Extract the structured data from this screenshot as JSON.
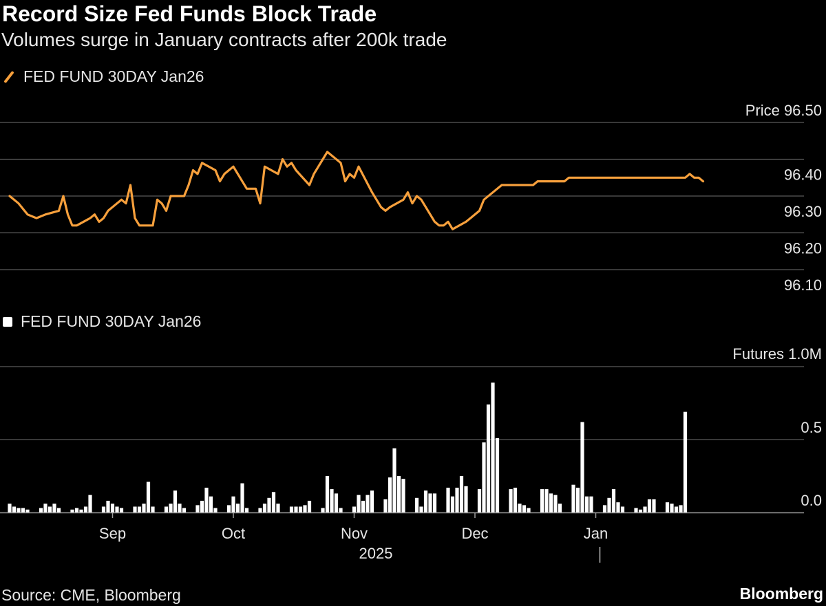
{
  "title": "Record Size Fed Funds Block Trade",
  "subtitle": "Volumes surge in January contracts after 200k trade",
  "source": "Source: CME, Bloomberg",
  "brand": "Bloomberg",
  "chart_data": [
    {
      "type": "line",
      "series_name": "FED FUND 30DAY Jan26",
      "color": "#f7a03c",
      "ylabel": "Price",
      "ylim": [
        96.06,
        96.5
      ],
      "yticks": [
        {
          "value": 96.5,
          "label": "96.50"
        },
        {
          "value": 96.4,
          "label": "96.40"
        },
        {
          "value": 96.3,
          "label": "96.30"
        },
        {
          "value": 96.2,
          "label": "96.20"
        },
        {
          "value": 96.1,
          "label": "96.10"
        }
      ],
      "day_offset": [
        0,
        2,
        4,
        6,
        8,
        11,
        12,
        13,
        14,
        15,
        18,
        19,
        20,
        21,
        22,
        25,
        26,
        27,
        28,
        29,
        32,
        33,
        34,
        35,
        36,
        39,
        40,
        41,
        42,
        43,
        46,
        47,
        48,
        49,
        50,
        53,
        54,
        55,
        56,
        57,
        60,
        61,
        62,
        63,
        64,
        67,
        68,
        69,
        70,
        71,
        74,
        75,
        76,
        77,
        78,
        81,
        82,
        83,
        84,
        85,
        88,
        89,
        90,
        91,
        92,
        95,
        96,
        97,
        98,
        99,
        102,
        103,
        104,
        105,
        106,
        109,
        110,
        111,
        112,
        113,
        116,
        117,
        118,
        119,
        120,
        123,
        124,
        125,
        126,
        127,
        130,
        131,
        132,
        133,
        134,
        137,
        138,
        139,
        140,
        141,
        144,
        145,
        146,
        147,
        148,
        151,
        152,
        153,
        154,
        155
      ],
      "price": [
        96.3,
        96.28,
        96.25,
        96.24,
        96.25,
        96.26,
        96.3,
        96.25,
        96.22,
        96.22,
        96.24,
        96.25,
        96.23,
        96.24,
        96.26,
        96.29,
        96.28,
        96.33,
        96.24,
        96.22,
        96.22,
        96.29,
        96.28,
        96.26,
        96.3,
        96.3,
        96.33,
        96.37,
        96.36,
        96.39,
        96.37,
        96.34,
        96.36,
        96.37,
        96.38,
        96.32,
        96.32,
        96.32,
        96.28,
        96.38,
        96.36,
        96.4,
        96.38,
        96.39,
        96.37,
        96.33,
        96.36,
        96.38,
        96.4,
        96.42,
        96.39,
        96.34,
        96.36,
        96.35,
        96.38,
        96.31,
        96.29,
        96.27,
        96.26,
        96.27,
        96.29,
        96.31,
        96.28,
        96.3,
        96.29,
        96.23,
        96.22,
        96.22,
        96.23,
        96.21,
        96.23,
        96.24,
        96.25,
        96.26,
        96.29,
        96.32,
        96.33,
        96.33,
        96.33,
        96.33,
        96.33,
        96.33,
        96.34,
        96.34,
        96.34,
        96.34,
        96.34,
        96.35,
        96.35,
        96.35,
        96.35,
        96.35,
        96.35,
        96.35,
        96.35,
        96.35,
        96.35,
        96.35,
        96.35,
        96.35,
        96.35,
        96.35,
        96.35,
        96.35,
        96.35,
        96.35,
        96.36,
        96.35,
        96.35,
        96.34
      ]
    },
    {
      "type": "bar",
      "series_name": "FED FUND 30DAY Jan26",
      "color": "#ffffff",
      "ylabel": "Futures",
      "ylim": [
        0,
        1.0
      ],
      "yticks": [
        {
          "value": 1.0,
          "label": "1.0M"
        },
        {
          "value": 0.5,
          "label": "0.5"
        },
        {
          "value": 0.0,
          "label": "0.0"
        }
      ],
      "day_offset": [
        0,
        1,
        2,
        3,
        4,
        7,
        8,
        9,
        10,
        11,
        14,
        15,
        16,
        17,
        18,
        21,
        22,
        23,
        24,
        25,
        28,
        29,
        30,
        31,
        32,
        35,
        36,
        37,
        38,
        39,
        42,
        43,
        44,
        45,
        46,
        49,
        50,
        51,
        52,
        53,
        56,
        57,
        58,
        59,
        60,
        63,
        64,
        65,
        66,
        67,
        70,
        71,
        72,
        73,
        74,
        77,
        78,
        79,
        80,
        81,
        84,
        85,
        86,
        87,
        88,
        91,
        92,
        93,
        94,
        95,
        98,
        99,
        100,
        101,
        102,
        105,
        106,
        107,
        108,
        109,
        112,
        113,
        114,
        115,
        116,
        119,
        120,
        121,
        122,
        123,
        126,
        127,
        128,
        129,
        130,
        133,
        134,
        135,
        136,
        137,
        140,
        141,
        142,
        143,
        144,
        147,
        148,
        149,
        150,
        151
      ],
      "volume_millions": [
        0.06,
        0.04,
        0.03,
        0.03,
        0.02,
        0.03,
        0.06,
        0.04,
        0.06,
        0.03,
        0.02,
        0.03,
        0.02,
        0.04,
        0.12,
        0.04,
        0.08,
        0.06,
        0.04,
        0.03,
        0.04,
        0.04,
        0.06,
        0.21,
        0.04,
        0.04,
        0.06,
        0.15,
        0.06,
        0.03,
        0.05,
        0.08,
        0.17,
        0.11,
        0.03,
        0.05,
        0.11,
        0.06,
        0.2,
        0.03,
        0.03,
        0.06,
        0.1,
        0.14,
        0.06,
        0.04,
        0.04,
        0.04,
        0.05,
        0.08,
        0.03,
        0.25,
        0.16,
        0.13,
        0.03,
        0.04,
        0.12,
        0.08,
        0.12,
        0.15,
        0.09,
        0.24,
        0.44,
        0.25,
        0.23,
        0.1,
        0.04,
        0.15,
        0.13,
        0.13,
        0.17,
        0.11,
        0.17,
        0.25,
        0.18,
        0.16,
        0.48,
        0.74,
        0.89,
        0.51,
        0.16,
        0.17,
        0.06,
        0.05,
        0.03,
        0.16,
        0.16,
        0.13,
        0.12,
        0.06,
        0.19,
        0.17,
        0.62,
        0.11,
        0.11,
        0.05,
        0.1,
        0.16,
        0.07,
        0.04,
        0.03,
        0.02,
        0.04,
        0.09,
        0.09,
        0.07,
        0.06,
        0.04,
        0.05,
        0.69
      ]
    }
  ],
  "x_axis": {
    "tick_labels": [
      {
        "label": "Sep",
        "day_offset": 23
      },
      {
        "label": "Oct",
        "day_offset": 50
      },
      {
        "label": "Nov",
        "day_offset": 77
      },
      {
        "label": "Dec",
        "day_offset": 104
      },
      {
        "label": "Jan",
        "day_offset": 131
      }
    ],
    "year_label": "2025"
  }
}
